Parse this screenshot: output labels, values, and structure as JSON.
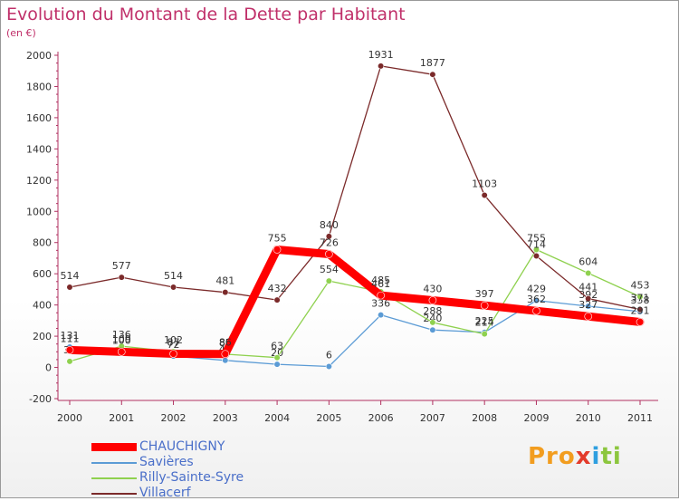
{
  "chart_data": {
    "type": "line",
    "title": "Evolution du Montant de la Dette par Habitant",
    "subtitle": "(en €)",
    "x": [
      "2000",
      "2001",
      "2002",
      "2003",
      "2004",
      "2005",
      "2006",
      "2007",
      "2008",
      "2009",
      "2010",
      "2011"
    ],
    "ylim": [
      -200,
      2000
    ],
    "yticks": [
      -200,
      0,
      200,
      400,
      600,
      800,
      1000,
      1200,
      1400,
      1600,
      1800,
      2000
    ],
    "grid": false,
    "legend_position": "bottom-left",
    "series": [
      {
        "name": "CHAUCHIGNY",
        "color": "#ff0000",
        "values": [
          111,
          100,
          87,
          86,
          755,
          726,
          461,
          430,
          397,
          362,
          327,
          291
        ]
      },
      {
        "name": "Savières",
        "color": "#5b9bd5",
        "values": [
          131,
          109,
          72,
          45,
          20,
          6,
          336,
          240,
          225,
          429,
          392,
          358
        ]
      },
      {
        "name": "Rilly-Sainte-Syre",
        "color": "#8fd14f",
        "values": [
          39,
          136,
          102,
          85,
          63,
          554,
          485,
          288,
          214,
          755,
          604,
          453
        ]
      },
      {
        "name": "Villacerf",
        "color": "#7b2a2a",
        "values": [
          514,
          577,
          514,
          481,
          432,
          840,
          1931,
          1877,
          1103,
          714,
          441,
          371
        ]
      }
    ]
  },
  "legend": {
    "items": [
      {
        "label": "CHAUCHIGNY",
        "color": "#ff0000"
      },
      {
        "label": "Savières",
        "color": "#5b9bd5"
      },
      {
        "label": "Rilly-Sainte-Syre",
        "color": "#8fd14f"
      },
      {
        "label": "Villacerf",
        "color": "#7b2a2a"
      }
    ]
  },
  "logo": {
    "part1": "Pro",
    "part2": "x",
    "part3": "i",
    "part4": "ti"
  }
}
